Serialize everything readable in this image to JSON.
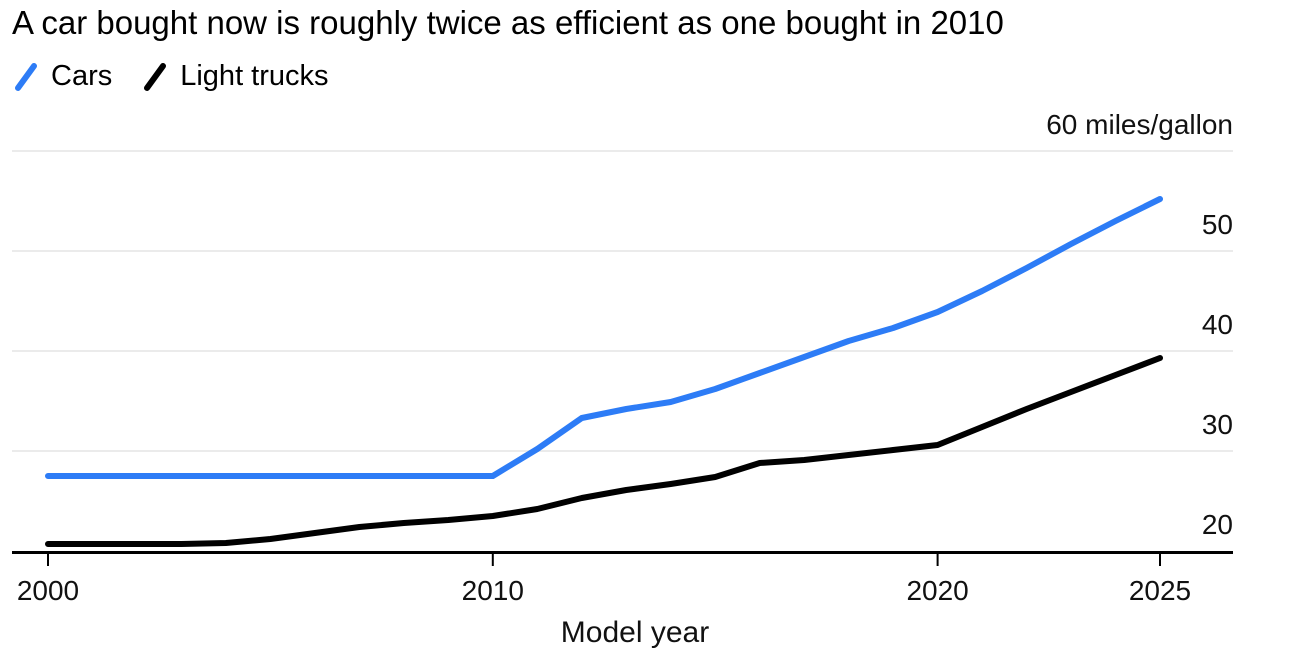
{
  "title": "A car bought now is roughly twice as efficient as one bought in 2010",
  "legend": [
    {
      "label": "Cars",
      "color": "#2d7cf6"
    },
    {
      "label": "Light trucks",
      "color": "#000000"
    }
  ],
  "colors": {
    "cars_blue": "#2d7cf6",
    "trucks_black": "#000000",
    "grid": "#ebebeb",
    "axis": "#000000",
    "text": "#111111",
    "background": "#ffffff"
  },
  "chart_data": {
    "type": "line",
    "title": "A car bought now is roughly twice as efficient as one bought in 2010",
    "xlabel": "Model year",
    "ylabel": "miles/gallon",
    "y_top_label": "60 miles/gallon",
    "xlim": [
      2000,
      2025
    ],
    "ylim": [
      20,
      60
    ],
    "x_ticks": [
      2000,
      2010,
      2020,
      2025
    ],
    "y_ticks": [
      20,
      30,
      40,
      50,
      60
    ],
    "grid": "horizontal",
    "legend_position": "top-left",
    "x": [
      2000,
      2001,
      2002,
      2003,
      2004,
      2005,
      2006,
      2007,
      2008,
      2009,
      2010,
      2011,
      2012,
      2013,
      2014,
      2015,
      2016,
      2017,
      2018,
      2019,
      2020,
      2021,
      2022,
      2023,
      2024,
      2025
    ],
    "series": [
      {
        "name": "Cars",
        "color": "#2d7cf6",
        "values": [
          27.5,
          27.5,
          27.5,
          27.5,
          27.5,
          27.5,
          27.5,
          27.5,
          27.5,
          27.5,
          27.5,
          30.2,
          33.3,
          34.2,
          34.9,
          36.2,
          37.8,
          39.4,
          41.0,
          42.3,
          43.9,
          46.0,
          48.3,
          50.7,
          53.0,
          55.2
        ]
      },
      {
        "name": "Light trucks",
        "color": "#000000",
        "values": [
          20.7,
          20.7,
          20.7,
          20.7,
          20.8,
          21.2,
          21.8,
          22.4,
          22.8,
          23.1,
          23.5,
          24.2,
          25.3,
          26.1,
          26.7,
          27.4,
          28.8,
          29.1,
          29.6,
          30.1,
          30.6,
          32.4,
          34.2,
          35.9,
          37.6,
          39.3
        ]
      }
    ]
  }
}
